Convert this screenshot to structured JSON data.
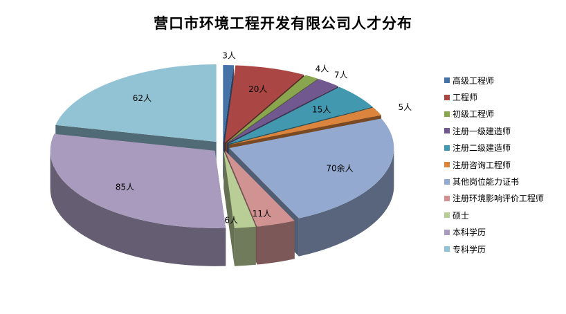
{
  "chart_data": {
    "type": "pie",
    "title": "营口市环境工程开发有限公司人才分布",
    "three_d": true,
    "exploded": true,
    "legend_position": "right",
    "categories": [
      "高级工程师",
      "工程师",
      "初级工程师",
      "注册一级建造师",
      "注册二级建造师",
      "注册咨询工程师",
      "其他岗位能力证书",
      "注册环境影响评价工程师",
      "硕士",
      "本科学历",
      "专科学历"
    ],
    "values": [
      3,
      20,
      4,
      7,
      15,
      5,
      70,
      11,
      6,
      85,
      62
    ],
    "data_labels": [
      "3人",
      "20人",
      "4人",
      "7人",
      "15人",
      "5人",
      "70余人",
      "11人",
      "6人",
      "85人",
      "62人"
    ],
    "colors": [
      "#4572a7",
      "#aa4643",
      "#89a54e",
      "#71588f",
      "#4198af",
      "#db843d",
      "#93a9cf",
      "#d19392",
      "#b9cd96",
      "#a99bbd",
      "#92c3d4"
    ]
  }
}
